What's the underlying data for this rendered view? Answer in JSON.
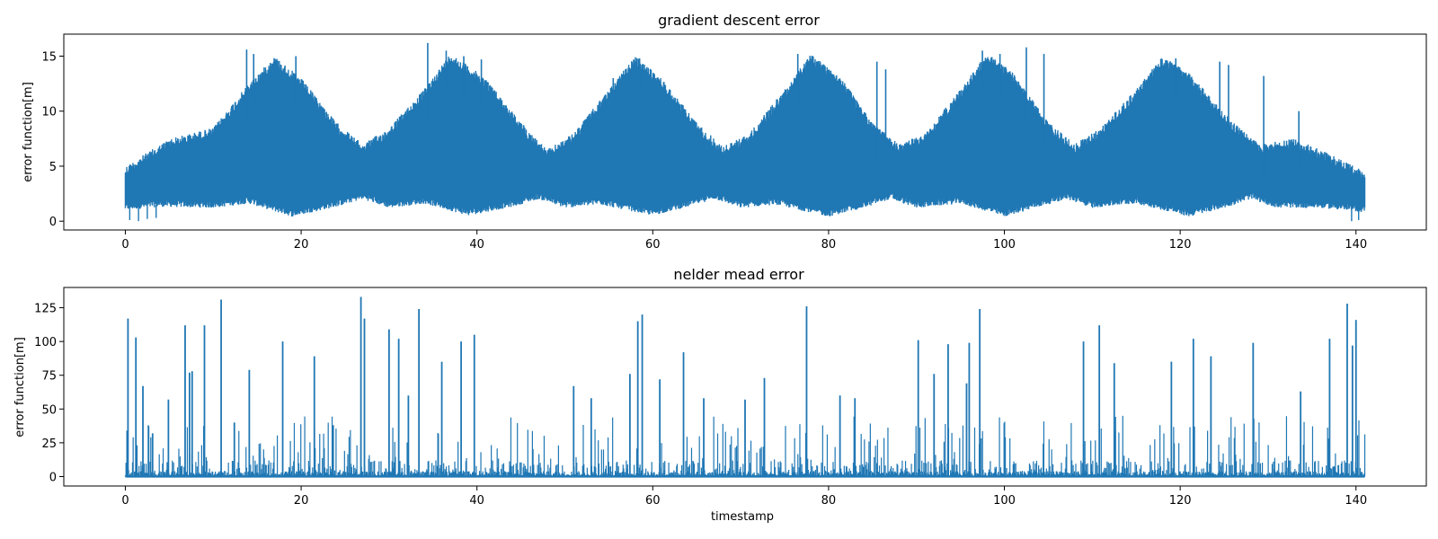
{
  "chart_data": [
    {
      "type": "line",
      "title": "gradient descent error",
      "xlabel": "",
      "ylabel": "error function[m]",
      "xlim": [
        -7,
        148
      ],
      "ylim": [
        -0.8,
        17
      ],
      "xticks": [
        0,
        20,
        40,
        60,
        80,
        100,
        120,
        140
      ],
      "yticks": [
        0,
        5,
        10,
        15
      ],
      "grid": false,
      "line_color": "#1f77b4",
      "x_range": [
        0,
        141
      ],
      "band_min_values_at_x": [
        [
          0,
          1.0
        ],
        [
          4,
          1.3
        ],
        [
          10,
          1.2
        ],
        [
          14,
          1.6
        ],
        [
          19,
          0.4
        ],
        [
          24,
          1.3
        ],
        [
          27,
          2.0
        ],
        [
          30,
          1.2
        ],
        [
          34,
          1.6
        ],
        [
          39,
          0.5
        ],
        [
          44,
          1.3
        ],
        [
          47,
          2.0
        ],
        [
          50,
          1.2
        ],
        [
          54,
          1.5
        ],
        [
          60,
          0.5
        ],
        [
          64,
          1.3
        ],
        [
          67,
          2.0
        ],
        [
          70,
          1.2
        ],
        [
          74,
          1.5
        ],
        [
          80,
          0.4
        ],
        [
          84,
          1.2
        ],
        [
          87,
          2.0
        ],
        [
          90,
          1.2
        ],
        [
          95,
          1.6
        ],
        [
          100,
          0.4
        ],
        [
          104,
          1.3
        ],
        [
          107,
          2.0
        ],
        [
          110,
          1.2
        ],
        [
          115,
          1.6
        ],
        [
          121,
          0.4
        ],
        [
          125,
          1.2
        ],
        [
          128,
          2.0
        ],
        [
          131,
          1.2
        ],
        [
          136,
          1.2
        ],
        [
          141,
          0.8
        ]
      ],
      "band_max_values_at_x": [
        [
          0,
          5.0
        ],
        [
          5,
          7.5
        ],
        [
          10,
          8.5
        ],
        [
          14,
          12.5
        ],
        [
          17,
          15.0
        ],
        [
          20,
          13.0
        ],
        [
          24,
          9.0
        ],
        [
          27,
          7.0
        ],
        [
          30,
          8.5
        ],
        [
          34,
          12.0
        ],
        [
          37,
          15.3
        ],
        [
          41,
          13.0
        ],
        [
          45,
          9.0
        ],
        [
          48,
          6.5
        ],
        [
          51,
          8.0
        ],
        [
          55,
          12.0
        ],
        [
          58,
          15.0
        ],
        [
          61,
          13.0
        ],
        [
          65,
          9.0
        ],
        [
          68,
          6.8
        ],
        [
          71,
          8.0
        ],
        [
          75,
          12.0
        ],
        [
          78,
          15.2
        ],
        [
          81,
          13.5
        ],
        [
          85,
          9.0
        ],
        [
          88,
          7.0
        ],
        [
          91,
          8.0
        ],
        [
          95,
          12.0
        ],
        [
          98,
          15.3
        ],
        [
          101,
          13.5
        ],
        [
          105,
          9.0
        ],
        [
          108,
          7.0
        ],
        [
          111,
          8.5
        ],
        [
          115,
          12.0
        ],
        [
          118,
          15.0
        ],
        [
          121,
          13.5
        ],
        [
          126,
          9.0
        ],
        [
          129,
          7.0
        ],
        [
          133,
          7.5
        ],
        [
          136,
          6.5
        ],
        [
          141,
          4.5
        ]
      ],
      "spikes_max_values_at_x": [
        [
          13.8,
          15.6
        ],
        [
          14.6,
          15.2
        ],
        [
          19.4,
          15.0
        ],
        [
          34.4,
          16.2
        ],
        [
          36.5,
          15.5
        ],
        [
          38.5,
          15.0
        ],
        [
          40.5,
          14.7
        ],
        [
          55.5,
          13.0
        ],
        [
          58.5,
          14.8
        ],
        [
          76.5,
          15.2
        ],
        [
          85.5,
          14.5
        ],
        [
          86.5,
          13.8
        ],
        [
          97.5,
          15.5
        ],
        [
          99.5,
          15.2
        ],
        [
          102.5,
          15.8
        ],
        [
          104.5,
          15.2
        ],
        [
          119.5,
          14.8
        ],
        [
          124.5,
          14.5
        ],
        [
          125.5,
          14.2
        ],
        [
          129.5,
          13.2
        ],
        [
          133.5,
          10.0
        ]
      ]
    },
    {
      "type": "line",
      "title": "nelder mead error",
      "xlabel": "timestamp",
      "ylabel": "error function[m]",
      "xlim": [
        -7,
        148
      ],
      "ylim": [
        -7,
        140
      ],
      "xticks": [
        0,
        20,
        40,
        60,
        80,
        100,
        120,
        140
      ],
      "yticks": [
        0,
        25,
        50,
        75,
        100,
        125
      ],
      "grid": false,
      "line_color": "#1f77b4",
      "x_range": [
        0,
        141
      ],
      "baseline_value": 0,
      "spikes_max_values_at_x": [
        [
          0.2,
          34
        ],
        [
          0.3,
          117
        ],
        [
          1.2,
          103
        ],
        [
          2.0,
          67
        ],
        [
          3.1,
          32
        ],
        [
          4.9,
          57
        ],
        [
          6.8,
          112
        ],
        [
          7.3,
          77
        ],
        [
          7.6,
          78
        ],
        [
          9.0,
          112
        ],
        [
          10.9,
          131
        ],
        [
          12.4,
          40
        ],
        [
          14.1,
          79
        ],
        [
          17.9,
          100
        ],
        [
          21.5,
          89
        ],
        [
          26.8,
          133
        ],
        [
          27.2,
          117
        ],
        [
          30.0,
          109
        ],
        [
          31.1,
          102
        ],
        [
          32.2,
          60
        ],
        [
          33.4,
          124
        ],
        [
          36.0,
          85
        ],
        [
          38.2,
          100
        ],
        [
          39.7,
          105
        ],
        [
          51.0,
          67
        ],
        [
          53.0,
          58
        ],
        [
          57.4,
          76
        ],
        [
          58.3,
          115
        ],
        [
          58.8,
          120
        ],
        [
          60.8,
          72
        ],
        [
          63.5,
          92
        ],
        [
          65.8,
          58
        ],
        [
          70.5,
          57
        ],
        [
          72.7,
          73
        ],
        [
          77.5,
          126
        ],
        [
          81.3,
          60
        ],
        [
          83.0,
          58
        ],
        [
          90.2,
          101
        ],
        [
          92.0,
          76
        ],
        [
          93.6,
          98
        ],
        [
          95.7,
          69
        ],
        [
          96.0,
          99
        ],
        [
          97.2,
          124
        ],
        [
          109.0,
          100
        ],
        [
          110.8,
          112
        ],
        [
          112.5,
          84
        ],
        [
          119.0,
          85
        ],
        [
          121.5,
          102
        ],
        [
          123.5,
          89
        ],
        [
          128.3,
          99
        ],
        [
          133.7,
          63
        ],
        [
          137.0,
          102
        ],
        [
          139.0,
          128
        ],
        [
          139.6,
          97
        ],
        [
          140.0,
          116
        ]
      ],
      "burst_level_range": [
        5,
        45
      ]
    }
  ]
}
